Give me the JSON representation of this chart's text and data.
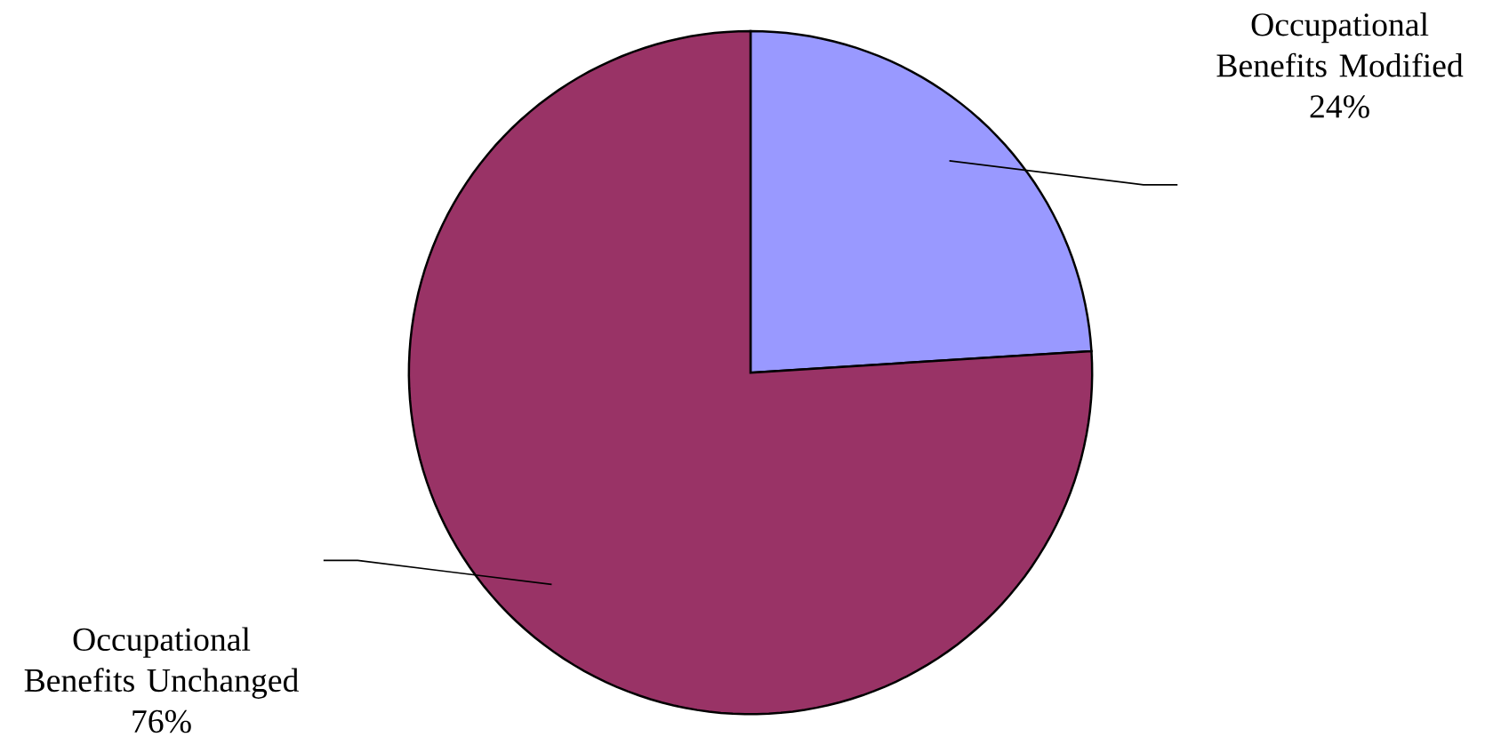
{
  "chart_data": {
    "type": "pie",
    "categories": [
      "Occupational Benefits Modified",
      "Occupational Benefits Unchanged"
    ],
    "values": [
      24,
      76
    ],
    "colors": [
      "#9999ff",
      "#993366"
    ],
    "value_labels": [
      "24%",
      "76%"
    ]
  }
}
